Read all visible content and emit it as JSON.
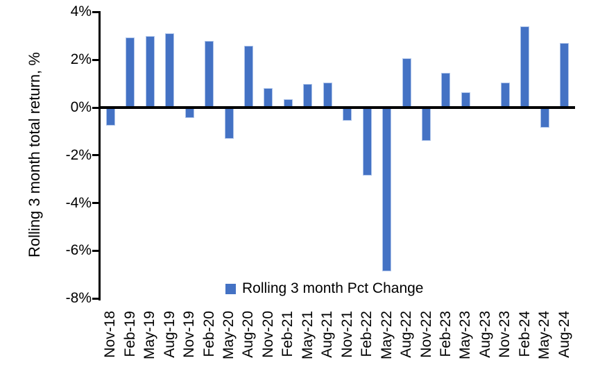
{
  "chart_data": {
    "type": "bar",
    "title": "",
    "ylabel": "Rolling 3 month total return, %",
    "xlabel": "",
    "categories": [
      "Nov-18",
      "Feb-19",
      "May-19",
      "Aug-19",
      "Nov-19",
      "Feb-20",
      "May-20",
      "Aug-20",
      "Nov-20",
      "Feb-21",
      "May-21",
      "Aug-21",
      "Nov-21",
      "Feb-22",
      "May-22",
      "Aug-22",
      "Nov-22",
      "Feb-23",
      "May-23",
      "Aug-23",
      "Nov-23",
      "Feb-24",
      "May-24",
      "Aug-24"
    ],
    "values": [
      -0.75,
      2.95,
      3.0,
      3.1,
      -0.45,
      2.8,
      -1.3,
      2.6,
      0.8,
      0.35,
      1.0,
      1.05,
      -0.55,
      -2.85,
      -6.85,
      2.05,
      -1.4,
      1.45,
      0.65,
      0.0,
      1.05,
      3.4,
      -0.85,
      2.7
    ],
    "ylim": [
      -8,
      4
    ],
    "y_tick_labels": [
      "4%",
      "2%",
      "0%",
      "-2%",
      "-4%",
      "-6%",
      "-8%"
    ],
    "y_tick_values": [
      4,
      2,
      0,
      -2,
      -4,
      -6,
      -8
    ],
    "grid": "off",
    "legend_position": "bottom-center",
    "legend": [
      {
        "label": "Rolling 3 month Pct Change",
        "color": "#4472C4"
      }
    ],
    "bar_color": "#4472C4",
    "bar_border_color": "#aec4ea",
    "axis_color": "#000000",
    "background_color": "#ffffff"
  }
}
